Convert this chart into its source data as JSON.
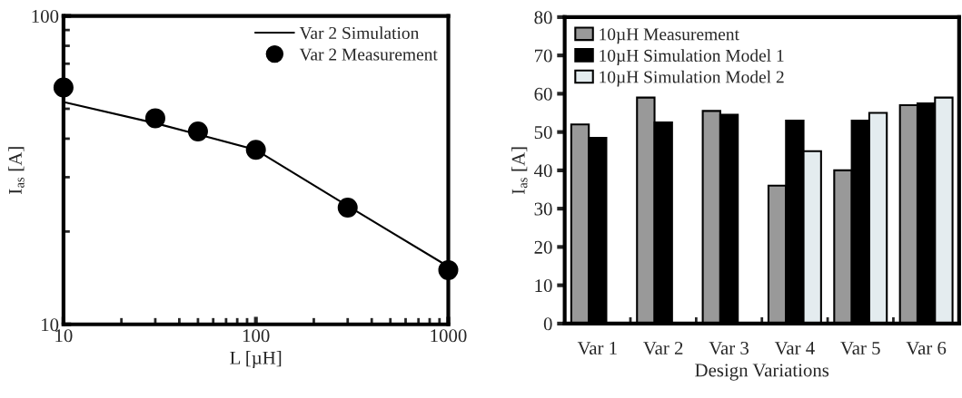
{
  "chart_data": [
    {
      "type": "line",
      "xlabel": "L [µH]",
      "ylabel": "I$_{as}$ [A]",
      "log": "xy",
      "xlim": [
        10,
        1000
      ],
      "xticks": [
        10,
        100,
        1000
      ],
      "ylim": [
        10,
        100
      ],
      "yticks": [
        10,
        100
      ],
      "grid": false,
      "legend": "top right",
      "series": [
        {
          "name": "Var 2 Simulation",
          "type": "line",
          "color": "#000000",
          "marker": "none",
          "line_style": "solid",
          "x": [
            10,
            30,
            50,
            100,
            300,
            1000
          ],
          "values": [
            52.6,
            44.9,
            41.3,
            36.8,
            24.2,
            15.4
          ]
        },
        {
          "name": "Var 2 Measurement",
          "type": "scatter",
          "color": "#000000",
          "marker": "circle",
          "x": [
            10,
            30,
            50,
            100,
            300,
            1000
          ],
          "values": [
            58.6,
            46.6,
            42.2,
            36.8,
            23.9,
            15.0
          ]
        }
      ]
    },
    {
      "type": "bar",
      "xlabel": "Design Variations",
      "ylabel": "I$_{as}$ [A]",
      "categories": [
        "Var 1",
        "Var 2",
        "Var 3",
        "Var 4",
        "Var 5",
        "Var 6"
      ],
      "ylim": [
        0,
        80
      ],
      "yticks": [
        0,
        10,
        20,
        30,
        40,
        50,
        60,
        70,
        80
      ],
      "grid": false,
      "legend": "top left",
      "series": [
        {
          "name": "10µH Measurement",
          "color": "#999999",
          "values": [
            52,
            59,
            55.5,
            36,
            40,
            57
          ]
        },
        {
          "name": "10µH Simulation Model 1",
          "color": "#000000",
          "values": [
            48.5,
            52.5,
            54.5,
            53,
            53,
            57.5
          ]
        },
        {
          "name": "10µH Simulation Model 2",
          "color": "#e4ecef",
          "values": [
            null,
            null,
            null,
            45,
            55,
            59
          ]
        }
      ]
    }
  ]
}
